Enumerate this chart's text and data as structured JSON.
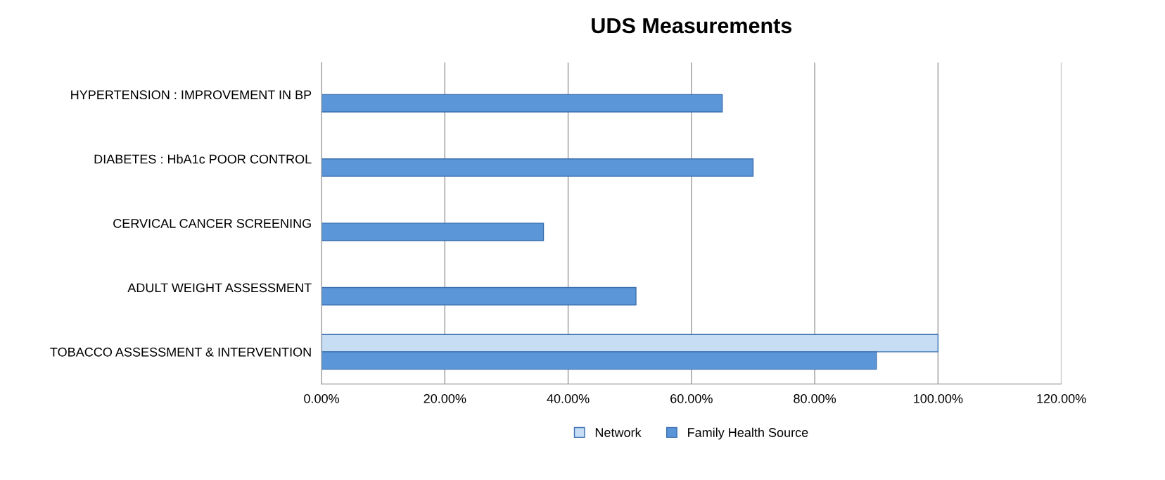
{
  "chart_data": {
    "type": "bar",
    "orientation": "horizontal",
    "title": "UDS Measurements",
    "categories": [
      "HYPERTENSION : IMPROVEMENT IN BP",
      "DIABETES : HbA1c POOR CONTROL",
      "CERVICAL CANCER SCREENING",
      "ADULT WEIGHT ASSESSMENT",
      "TOBACCO ASSESSMENT & INTERVENTION"
    ],
    "series": [
      {
        "name": "Network",
        "color": "#c6ddf4",
        "values": [
          null,
          null,
          null,
          null,
          100
        ]
      },
      {
        "name": "Family Health Source",
        "color": "#5b96d8",
        "values": [
          65,
          70,
          36,
          51,
          90
        ]
      }
    ],
    "xlim": [
      0,
      120
    ],
    "xticks": [
      {
        "value": 0,
        "label": "0.00%"
      },
      {
        "value": 20,
        "label": "20.00%"
      },
      {
        "value": 40,
        "label": "40.00%"
      },
      {
        "value": 60,
        "label": "60.00%"
      },
      {
        "value": 80,
        "label": "80.00%"
      },
      {
        "value": 100,
        "label": "100.00%"
      },
      {
        "value": 120,
        "label": "120.00%"
      }
    ],
    "grid": "x",
    "legend": "bottom"
  }
}
